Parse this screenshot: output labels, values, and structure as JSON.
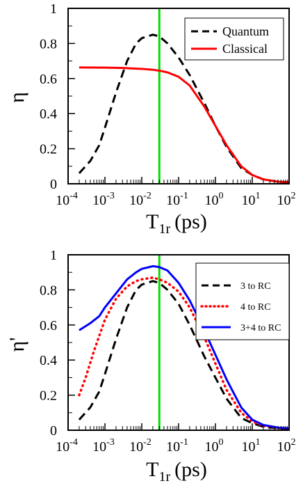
{
  "colors": {
    "quantum": "#000000",
    "classical": "#ff0000",
    "three_to_rc": "#000000",
    "four_to_rc": "#ff0000",
    "three_four_to_rc": "#0000ff",
    "marker_line": "#00dd00"
  },
  "chart_data": [
    {
      "type": "line",
      "title": "",
      "xlabel": {
        "main": "T",
        "sub": "1r",
        "unit": "(ps)"
      },
      "ylabel": "η",
      "x_scale": "log",
      "xlim": [
        0.0001,
        100
      ],
      "ylim": [
        0,
        1
      ],
      "x_tick_labels": [
        {
          "base": "10",
          "exp": "-4"
        },
        {
          "base": "10",
          "exp": "-3"
        },
        {
          "base": "10",
          "exp": "-2"
        },
        {
          "base": "10",
          "exp": "-1"
        },
        {
          "base": "10",
          "exp": "0"
        },
        {
          "base": "10",
          "exp": "1"
        },
        {
          "base": "10",
          "exp": "2"
        }
      ],
      "y_tick_labels": [
        "0",
        "0.2",
        "0.4",
        "0.6",
        "0.8",
        "1"
      ],
      "vertical_marker_x": 0.03,
      "legend_position": "top-right",
      "series": [
        {
          "name": "Quantum",
          "style": "dashed",
          "x": [
            0.0002,
            0.0004,
            0.0007,
            0.001,
            0.002,
            0.004,
            0.007,
            0.01,
            0.02,
            0.03,
            0.05,
            0.1,
            0.2,
            0.5,
            1,
            2,
            5,
            10,
            20,
            50,
            100
          ],
          "y": [
            0.06,
            0.13,
            0.22,
            0.32,
            0.52,
            0.7,
            0.8,
            0.83,
            0.85,
            0.84,
            0.8,
            0.72,
            0.62,
            0.46,
            0.33,
            0.21,
            0.09,
            0.05,
            0.025,
            0.012,
            0.008
          ]
        },
        {
          "name": "Classical",
          "style": "solid",
          "x": [
            0.0002,
            0.001,
            0.003,
            0.01,
            0.02,
            0.03,
            0.05,
            0.1,
            0.2,
            0.5,
            1,
            2,
            5,
            10,
            20,
            50,
            100
          ],
          "y": [
            0.663,
            0.662,
            0.66,
            0.655,
            0.65,
            0.645,
            0.635,
            0.61,
            0.56,
            0.44,
            0.33,
            0.22,
            0.1,
            0.05,
            0.025,
            0.012,
            0.008
          ]
        }
      ]
    },
    {
      "type": "line",
      "title": "",
      "xlabel": {
        "main": "T",
        "sub": "1r",
        "unit": "(ps)"
      },
      "ylabel": "η'",
      "x_scale": "log",
      "xlim": [
        0.0001,
        100
      ],
      "ylim": [
        0,
        1
      ],
      "x_tick_labels": [
        {
          "base": "10",
          "exp": "-4"
        },
        {
          "base": "10",
          "exp": "-3"
        },
        {
          "base": "10",
          "exp": "-2"
        },
        {
          "base": "10",
          "exp": "-1"
        },
        {
          "base": "10",
          "exp": "0"
        },
        {
          "base": "10",
          "exp": "1"
        },
        {
          "base": "10",
          "exp": "2"
        }
      ],
      "y_tick_labels": [
        "0",
        "0.2",
        "0.4",
        "0.6",
        "0.8",
        "1"
      ],
      "vertical_marker_x": 0.03,
      "legend_position": "top-right",
      "series": [
        {
          "name": "3 to RC",
          "style": "dashed",
          "x": [
            0.0002,
            0.0004,
            0.0007,
            0.001,
            0.002,
            0.004,
            0.007,
            0.01,
            0.02,
            0.03,
            0.05,
            0.1,
            0.2,
            0.5,
            1,
            2,
            5,
            10,
            20,
            50,
            100
          ],
          "y": [
            0.06,
            0.13,
            0.22,
            0.32,
            0.52,
            0.7,
            0.8,
            0.83,
            0.85,
            0.84,
            0.8,
            0.72,
            0.6,
            0.42,
            0.3,
            0.18,
            0.07,
            0.04,
            0.02,
            0.01,
            0.008
          ]
        },
        {
          "name": "4 to RC",
          "style": "dotted",
          "x": [
            0.0002,
            0.0003,
            0.0005,
            0.001,
            0.002,
            0.004,
            0.007,
            0.01,
            0.02,
            0.03,
            0.05,
            0.1,
            0.2,
            0.5,
            1,
            2,
            5,
            10,
            20,
            50,
            100
          ],
          "y": [
            0.2,
            0.3,
            0.45,
            0.63,
            0.75,
            0.82,
            0.85,
            0.86,
            0.87,
            0.86,
            0.84,
            0.79,
            0.7,
            0.53,
            0.38,
            0.23,
            0.1,
            0.05,
            0.025,
            0.012,
            0.008
          ]
        },
        {
          "name": "3+4 to RC",
          "style": "solid",
          "x": [
            0.0002,
            0.0004,
            0.0007,
            0.001,
            0.002,
            0.004,
            0.007,
            0.01,
            0.02,
            0.03,
            0.05,
            0.1,
            0.2,
            0.5,
            1,
            2,
            5,
            10,
            20,
            50,
            100
          ],
          "y": [
            0.57,
            0.61,
            0.65,
            0.7,
            0.78,
            0.86,
            0.9,
            0.92,
            0.935,
            0.93,
            0.91,
            0.84,
            0.74,
            0.57,
            0.43,
            0.29,
            0.13,
            0.06,
            0.03,
            0.015,
            0.01
          ]
        }
      ]
    }
  ]
}
